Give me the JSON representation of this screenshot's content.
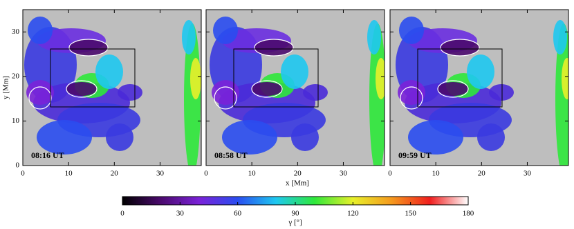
{
  "chart_data": {
    "type": "heatmap",
    "xlabel": "x  [Mm]",
    "ylabel": "y  [Mm]",
    "background": "#bebebe",
    "panels": [
      {
        "label": "08:16 UT",
        "xlim": [
          0,
          39
        ],
        "ylim": [
          0,
          35
        ],
        "xticks": [
          0,
          10,
          20,
          30
        ],
        "yticks": [
          0,
          10,
          20,
          30
        ]
      },
      {
        "label": "08:58 UT",
        "xlim": [
          0,
          39
        ],
        "ylim": [
          0,
          35
        ],
        "xticks": [
          0,
          10,
          20,
          30
        ],
        "yticks": [
          0,
          10,
          20,
          30
        ]
      },
      {
        "label": "09:59 UT",
        "xlim": [
          0,
          39
        ],
        "ylim": [
          0,
          35
        ],
        "xticks": [
          0,
          10,
          20,
          30
        ],
        "yticks": [
          0,
          10,
          20,
          30
        ]
      }
    ],
    "colorbar": {
      "label": "γ  [°]",
      "lim": [
        0,
        180
      ],
      "ticks": [
        0,
        30,
        60,
        90,
        120,
        150,
        180
      ],
      "colors": [
        "#000000",
        "#4b0a6e",
        "#7a22d8",
        "#2a4df0",
        "#1ec8f0",
        "#2ee83a",
        "#e8f02a",
        "#f59a1e",
        "#f01e1e",
        "#ffffff"
      ]
    }
  }
}
